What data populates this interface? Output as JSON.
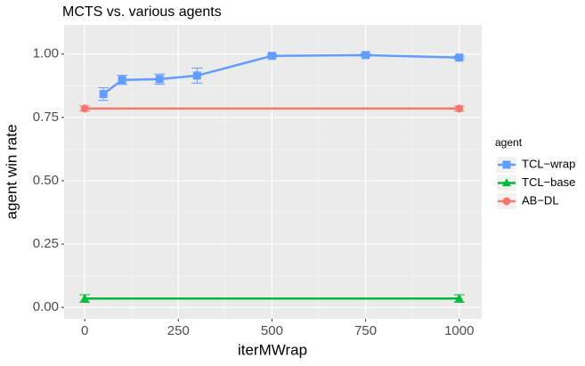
{
  "chart_data": {
    "type": "line",
    "title": "MCTS vs. various agents",
    "x_label": "iterMWrap",
    "y_label": "agent win rate",
    "legend_title": "agent",
    "legend_position": "right",
    "xlim": [
      -55,
      1060
    ],
    "ylim": [
      -0.045,
      1.115
    ],
    "xticks": [
      0,
      250,
      500,
      750,
      1000
    ],
    "yticks": [
      {
        "value": 0,
        "label": "0.00"
      },
      {
        "value": 0.25,
        "label": "0.25"
      },
      {
        "value": 0.5,
        "label": "0.50"
      },
      {
        "value": 0.75,
        "label": "0.75"
      },
      {
        "value": 1,
        "label": "1.00"
      }
    ],
    "grid": true,
    "series": [
      {
        "name": "TCL−wrap",
        "color": "#619cff",
        "shape": "square",
        "x": [
          50,
          100,
          200,
          300,
          500,
          750,
          1000
        ],
        "values": [
          0.842,
          0.898,
          0.901,
          0.915,
          0.993,
          0.996,
          0.986
        ],
        "errors": [
          0.025,
          0.018,
          0.02,
          0.03,
          0.005,
          0.005,
          0.006
        ]
      },
      {
        "name": "TCL−base",
        "color": "#00ba38",
        "shape": "triangle",
        "x": [
          0,
          1000
        ],
        "values": [
          0.035,
          0.035
        ],
        "errors": [
          0.015,
          0.015
        ]
      },
      {
        "name": "AB−DL",
        "color": "#f8766d",
        "shape": "circle",
        "x": [
          0,
          1000
        ],
        "values": [
          0.785,
          0.785
        ],
        "errors": [
          0.01,
          0.01
        ]
      }
    ]
  }
}
